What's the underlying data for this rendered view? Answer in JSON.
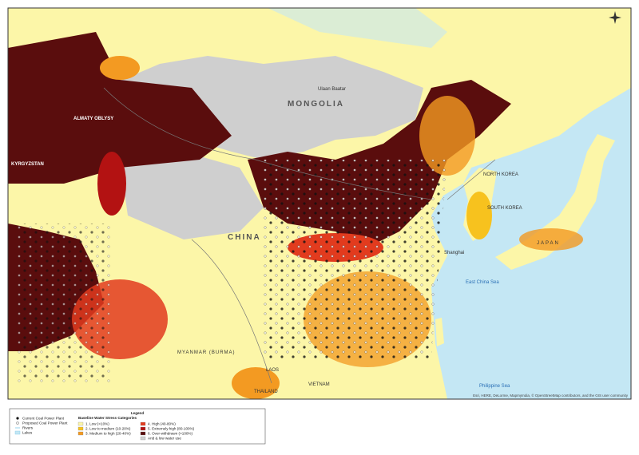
{
  "map": {
    "labels": {
      "mongolia": "MONGOLIA",
      "ulaanbaatar": "Ulaan Baatar",
      "china": "CHINA",
      "kyrgyzstan": "KYRGYZSTAN",
      "almaty": "ALMATY OBLYSY",
      "north_korea": "NORTH KOREA",
      "south_korea": "SOUTH KOREA",
      "japan": "JAPAN",
      "shanghai": "Shanghai",
      "east_china_sea": "East China Sea",
      "philippine_sea": "Philippine Sea",
      "myanmar": "MYANMAR (BURMA)",
      "laos": "LAOS",
      "thailand": "THAILAND",
      "vietnam": "VIETNAM"
    },
    "attribution": "Esri, HERE, DeLorme, MapmyIndia, © OpenStreetMap contributors, and the GIS user community",
    "legend": {
      "title": "Legend",
      "symbols": [
        "Current Coal Power Plant",
        "Proposed Coal Power Plant",
        "Rivers",
        "Lakes"
      ],
      "categories_title": "Baseline Water Stress Categories",
      "categories": [
        "1. Low (<10%)",
        "2. Low to medium (10-20%)",
        "3. Medium to high (20-40%)",
        "4. High (40-80%)",
        "5. Extremely high (80-100%)",
        "6. Over-withdrawn (>100%)",
        "Arid & low water use"
      ]
    }
  }
}
